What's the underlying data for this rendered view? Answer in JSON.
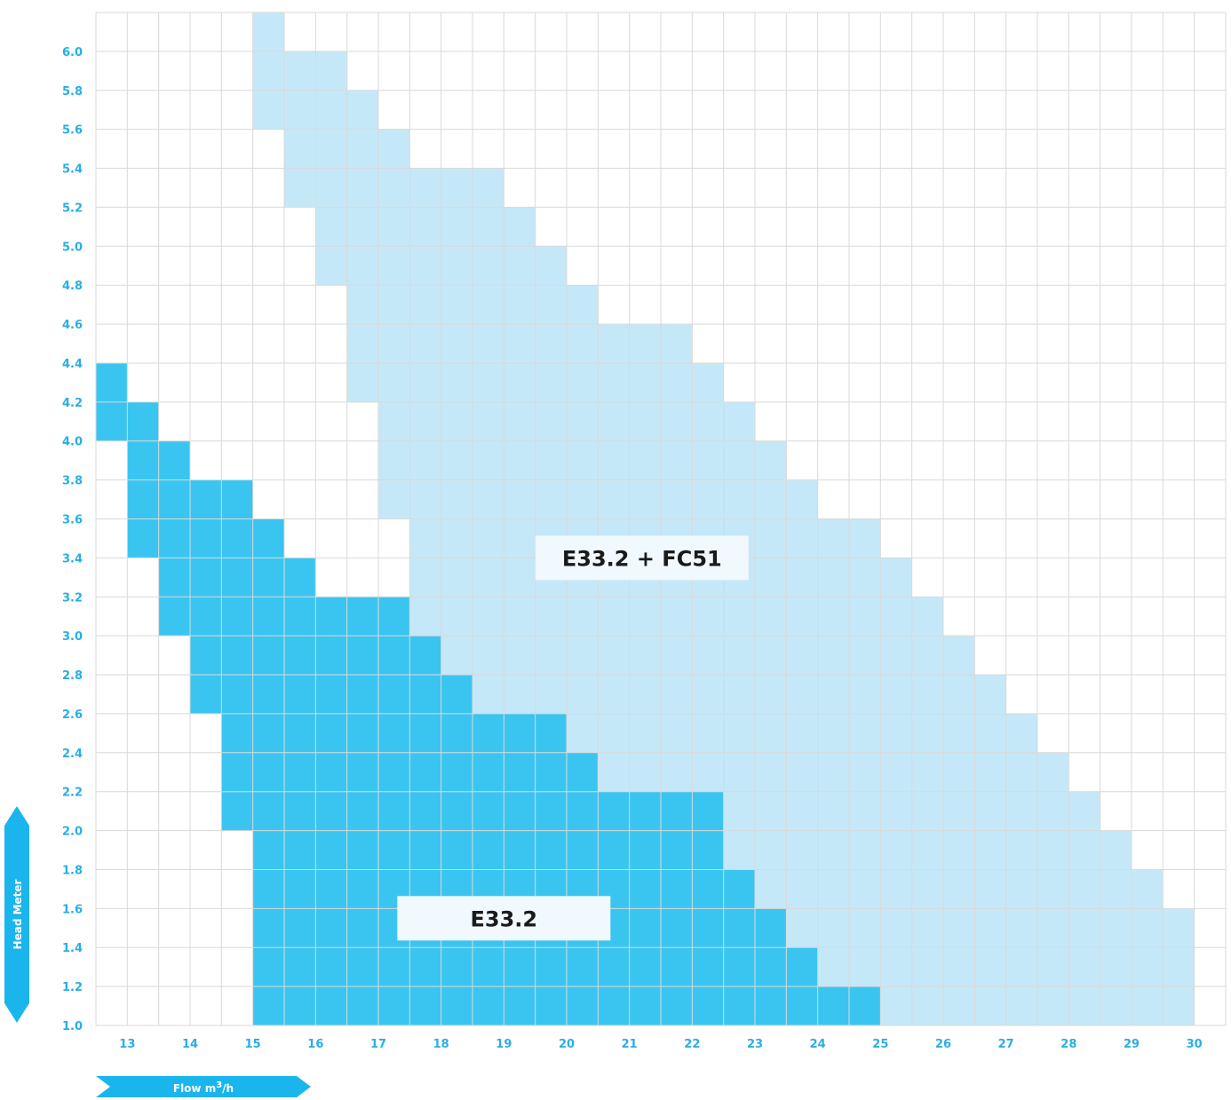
{
  "chart_data": {
    "type": "heatmap",
    "title": "",
    "xlabel": "Flow m3/h",
    "xlabel_base": "Flow m",
    "xlabel_sup": "3",
    "xlabel_tail": "/h",
    "ylabel": "Head Meter",
    "x_ticks": [
      "13",
      "14",
      "15",
      "16",
      "17",
      "18",
      "19",
      "20",
      "21",
      "22",
      "23",
      "24",
      "25",
      "26",
      "27",
      "28",
      "29",
      "30"
    ],
    "y_ticks": [
      "1.0",
      "1.2",
      "1.4",
      "1.6",
      "1.8",
      "2.0",
      "2.2",
      "2.4",
      "2.6",
      "2.8",
      "3.0",
      "3.2",
      "3.4",
      "3.6",
      "3.8",
      "4.0",
      "4.2",
      "4.4",
      "4.6",
      "4.8",
      "5.0",
      "5.2",
      "5.4",
      "5.6",
      "5.8",
      "6.0"
    ],
    "xlim": [
      12.5,
      30.5
    ],
    "ylim": [
      1.0,
      6.2
    ],
    "grid": true,
    "column_step": 0.5,
    "row_step": 0.2,
    "series": [
      {
        "name": "E33.2",
        "color": "#3ac5f1",
        "columns": [
          {
            "x0": 12.5,
            "head_min": 4.0,
            "head_max": 4.4
          },
          {
            "x0": 13.0,
            "head_min": 3.4,
            "head_max": 4.2
          },
          {
            "x0": 13.5,
            "head_min": 3.0,
            "head_max": 4.0
          },
          {
            "x0": 14.0,
            "head_min": 2.6,
            "head_max": 3.8
          },
          {
            "x0": 14.5,
            "head_min": 2.0,
            "head_max": 3.8
          },
          {
            "x0": 15.0,
            "head_min": 1.0,
            "head_max": 3.6
          },
          {
            "x0": 15.5,
            "head_min": 1.0,
            "head_max": 3.4
          },
          {
            "x0": 16.0,
            "head_min": 1.0,
            "head_max": 3.2
          },
          {
            "x0": 16.5,
            "head_min": 1.0,
            "head_max": 3.2
          },
          {
            "x0": 17.0,
            "head_min": 1.0,
            "head_max": 3.2
          },
          {
            "x0": 17.5,
            "head_min": 1.0,
            "head_max": 3.0
          },
          {
            "x0": 18.0,
            "head_min": 1.0,
            "head_max": 2.8
          },
          {
            "x0": 18.5,
            "head_min": 1.0,
            "head_max": 2.6
          },
          {
            "x0": 19.0,
            "head_min": 1.0,
            "head_max": 2.6
          },
          {
            "x0": 19.5,
            "head_min": 1.0,
            "head_max": 2.6
          },
          {
            "x0": 20.0,
            "head_min": 1.0,
            "head_max": 2.4
          },
          {
            "x0": 20.5,
            "head_min": 1.0,
            "head_max": 2.2
          },
          {
            "x0": 21.0,
            "head_min": 1.0,
            "head_max": 2.2
          },
          {
            "x0": 21.5,
            "head_min": 1.0,
            "head_max": 2.2
          },
          {
            "x0": 22.0,
            "head_min": 1.0,
            "head_max": 2.2
          },
          {
            "x0": 22.5,
            "head_min": 1.0,
            "head_max": 1.8
          },
          {
            "x0": 23.0,
            "head_min": 1.0,
            "head_max": 1.6
          },
          {
            "x0": 23.5,
            "head_min": 1.0,
            "head_max": 1.4
          },
          {
            "x0": 24.0,
            "head_min": 1.0,
            "head_max": 1.2
          },
          {
            "x0": 24.5,
            "head_min": 1.0,
            "head_max": 1.2
          }
        ]
      },
      {
        "name": "E33.2 + FC51",
        "color": "#c5e8f8",
        "columns": [
          {
            "x0": 15.0,
            "head_min": 5.6,
            "head_max": 6.2
          },
          {
            "x0": 15.5,
            "head_min": 5.2,
            "head_max": 6.0
          },
          {
            "x0": 16.0,
            "head_min": 4.8,
            "head_max": 6.0
          },
          {
            "x0": 16.5,
            "head_min": 4.2,
            "head_max": 5.8
          },
          {
            "x0": 17.0,
            "head_min": 3.6,
            "head_max": 5.6
          },
          {
            "x0": 17.5,
            "head_min": 3.0,
            "head_max": 5.4
          },
          {
            "x0": 18.0,
            "head_min": 2.8,
            "head_max": 5.4
          },
          {
            "x0": 18.5,
            "head_min": 2.6,
            "head_max": 5.4
          },
          {
            "x0": 19.0,
            "head_min": 2.6,
            "head_max": 5.2
          },
          {
            "x0": 19.5,
            "head_min": 2.6,
            "head_max": 5.0
          },
          {
            "x0": 20.0,
            "head_min": 2.4,
            "head_max": 4.8
          },
          {
            "x0": 20.5,
            "head_min": 2.2,
            "head_max": 4.6
          },
          {
            "x0": 21.0,
            "head_min": 2.2,
            "head_max": 4.6
          },
          {
            "x0": 21.5,
            "head_min": 2.2,
            "head_max": 4.6
          },
          {
            "x0": 22.0,
            "head_min": 2.2,
            "head_max": 4.4
          },
          {
            "x0": 22.5,
            "head_min": 1.8,
            "head_max": 4.2
          },
          {
            "x0": 23.0,
            "head_min": 1.6,
            "head_max": 4.0
          },
          {
            "x0": 23.5,
            "head_min": 1.4,
            "head_max": 3.8
          },
          {
            "x0": 24.0,
            "head_min": 1.2,
            "head_max": 3.6
          },
          {
            "x0": 24.5,
            "head_min": 1.2,
            "head_max": 3.6
          },
          {
            "x0": 25.0,
            "head_min": 1.0,
            "head_max": 3.4
          },
          {
            "x0": 25.5,
            "head_min": 1.0,
            "head_max": 3.2
          },
          {
            "x0": 26.0,
            "head_min": 1.0,
            "head_max": 3.0
          },
          {
            "x0": 26.5,
            "head_min": 1.0,
            "head_max": 2.8
          },
          {
            "x0": 27.0,
            "head_min": 1.0,
            "head_max": 2.6
          },
          {
            "x0": 27.5,
            "head_min": 1.0,
            "head_max": 2.4
          },
          {
            "x0": 28.0,
            "head_min": 1.0,
            "head_max": 2.2
          },
          {
            "x0": 28.5,
            "head_min": 1.0,
            "head_max": 2.0
          },
          {
            "x0": 29.0,
            "head_min": 1.0,
            "head_max": 1.8
          },
          {
            "x0": 29.5,
            "head_min": 1.0,
            "head_max": 1.6
          }
        ]
      }
    ],
    "annotations": [
      {
        "text": "E33.2 + FC51",
        "series": "E33.2 + FC51",
        "flow": 21.2,
        "head": 3.4
      },
      {
        "text": "E33.2",
        "series": "E33.2",
        "flow": 19.0,
        "head": 1.55
      }
    ],
    "colors": {
      "label_box": "#f1f9fe",
      "grid": "#d9d9d9",
      "axis_badge": "#1bb5ee",
      "tick_text": "#29aee6"
    }
  }
}
